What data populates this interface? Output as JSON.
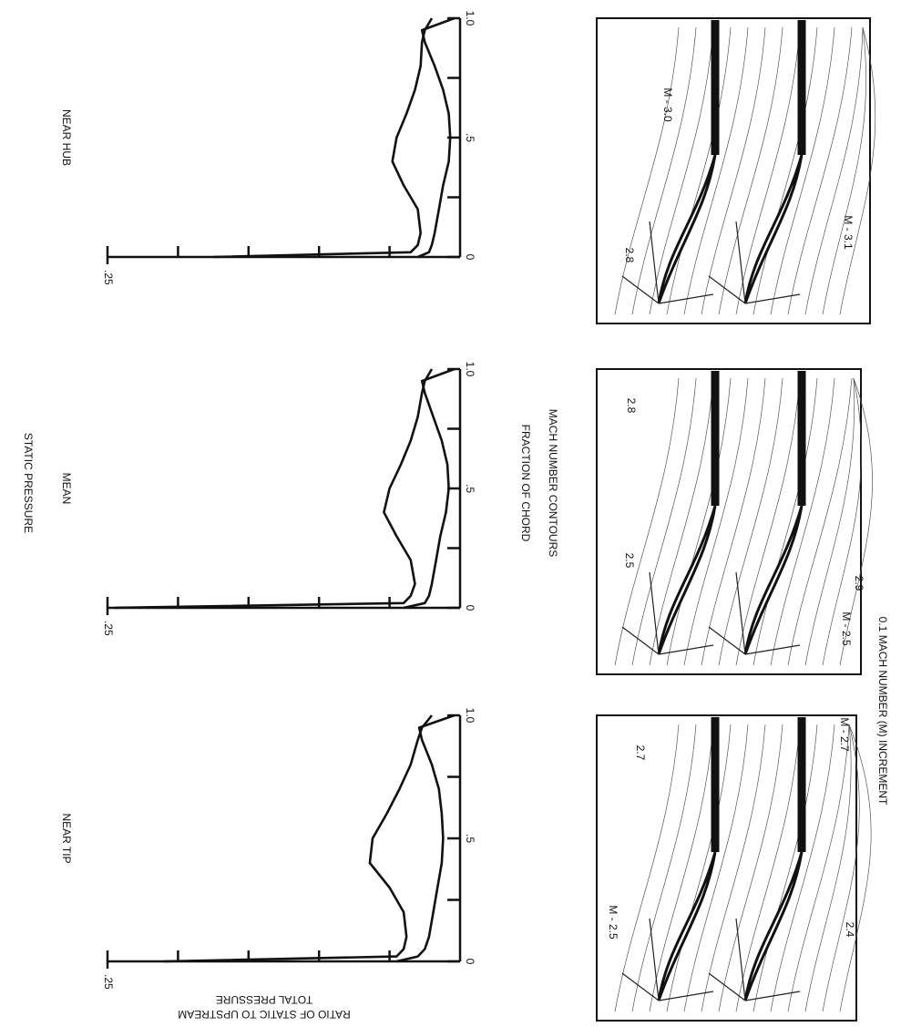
{
  "figure_title": "STATIC PRESSURE",
  "x_label": "FRACTION OF CHORD",
  "y_label": [
    "RATIO OF STATIC TO UPSTREAM",
    "TOTAL PRESSURE"
  ],
  "contour_title": "MACH NUMBER CONTOURS",
  "contour_note": "0.1 MACH NUMBER (M) INCREMENT",
  "chart_data": [
    {
      "type": "line",
      "title": "NEAR HUB",
      "x": [
        0,
        0.02,
        0.05,
        0.1,
        0.2,
        0.3,
        0.4,
        0.5,
        0.6,
        0.7,
        0.8,
        0.9,
        0.95,
        1.0
      ],
      "series": [
        {
          "color": "#111111",
          "values": [
            0.175,
            0.035,
            0.03,
            0.028,
            0.03,
            0.04,
            0.048,
            0.045,
            0.038,
            0.032,
            0.028,
            0.027,
            0.025,
            0.02
          ]
        },
        {
          "color": "#111111",
          "values": [
            0.03,
            0.022,
            0.02,
            0.018,
            0.015,
            0.012,
            0.008,
            0.007,
            0.008,
            0.012,
            0.018,
            0.025,
            0.027,
            0.004
          ]
        }
      ],
      "xlim": [
        0,
        1
      ],
      "xticks": [
        0,
        {
          "value": 0.5,
          "label": ".5"
        },
        {
          "value": 1,
          "label": "1.0"
        }
      ],
      "xminor": [
        0.25,
        0.75
      ],
      "ylim": [
        0,
        0.25
      ],
      "yticks": [
        {
          "value": 0.25,
          "label": ".25"
        }
      ],
      "yminor": [
        0.05,
        0.1,
        0.15,
        0.2
      ]
    },
    {
      "type": "line",
      "title": "MEAN",
      "x": [
        0,
        0.02,
        0.05,
        0.1,
        0.2,
        0.3,
        0.4,
        0.5,
        0.6,
        0.7,
        0.8,
        0.9,
        0.95,
        1.0
      ],
      "series": [
        {
          "color": "#111111",
          "values": [
            0.245,
            0.04,
            0.035,
            0.032,
            0.035,
            0.045,
            0.054,
            0.05,
            0.042,
            0.035,
            0.03,
            0.027,
            0.025,
            0.02
          ]
        },
        {
          "color": "#111111",
          "values": [
            0.04,
            0.025,
            0.022,
            0.02,
            0.017,
            0.014,
            0.01,
            0.008,
            0.009,
            0.013,
            0.019,
            0.025,
            0.027,
            0.004
          ]
        }
      ],
      "xlim": [
        0,
        1
      ],
      "xticks": [
        0,
        {
          "value": 0.5,
          "label": ".5"
        },
        {
          "value": 1,
          "label": "1.0"
        }
      ],
      "xminor": [
        0.25,
        0.75
      ],
      "ylim": [
        0,
        0.25
      ],
      "yticks": [
        {
          "value": 0.25,
          "label": ".25"
        }
      ],
      "yminor": [
        0.05,
        0.1,
        0.15,
        0.2
      ]
    },
    {
      "type": "line",
      "title": "NEAR TIP",
      "x": [
        0,
        0.02,
        0.05,
        0.1,
        0.2,
        0.3,
        0.4,
        0.5,
        0.6,
        0.7,
        0.8,
        0.9,
        0.95,
        1.0
      ],
      "series": [
        {
          "color": "#111111",
          "values": [
            0.21,
            0.045,
            0.04,
            0.038,
            0.04,
            0.05,
            0.064,
            0.062,
            0.052,
            0.043,
            0.035,
            0.03,
            0.027,
            0.02
          ]
        },
        {
          "color": "#111111",
          "values": [
            0.045,
            0.03,
            0.025,
            0.022,
            0.019,
            0.016,
            0.013,
            0.012,
            0.013,
            0.015,
            0.02,
            0.027,
            0.029,
            0.004
          ]
        }
      ],
      "xlim": [
        0,
        1
      ],
      "xticks": [
        0,
        {
          "value": 0.5,
          "label": ".5"
        },
        {
          "value": 1,
          "label": "1.0"
        }
      ],
      "xminor": [
        0.25,
        0.75
      ],
      "ylim": [
        0,
        0.25
      ],
      "yticks": [
        {
          "value": 0.25,
          "label": ".25"
        }
      ],
      "yminor": [
        0.05,
        0.1,
        0.15,
        0.2
      ]
    }
  ],
  "contours": [
    {
      "labels": [
        "2.8",
        "M - 3.0",
        "M - 3.1"
      ]
    },
    {
      "labels": [
        "2.5",
        "2.8",
        "M - 2.5",
        "2.9"
      ]
    },
    {
      "labels": [
        "M - 2.5",
        "2.7",
        "M - 2.7",
        "2.4"
      ]
    }
  ]
}
